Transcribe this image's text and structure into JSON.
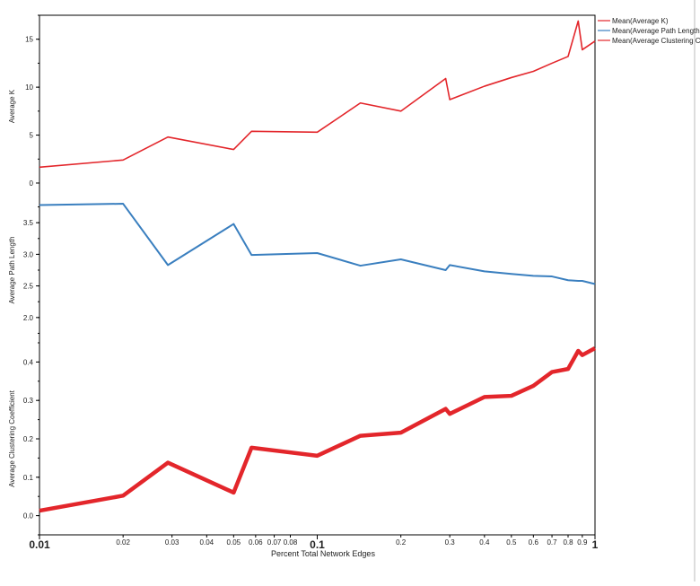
{
  "chart_data": {
    "type": "line",
    "xlabel": "Percent Total Network Edges",
    "xscale": "log",
    "xlim": [
      0.01,
      1
    ],
    "x_ticks": [
      {
        "v": 0.01,
        "label": "0.01",
        "major": true
      },
      {
        "v": 0.02,
        "label": "0.02"
      },
      {
        "v": 0.03,
        "label": "0.03"
      },
      {
        "v": 0.04,
        "label": "0.04"
      },
      {
        "v": 0.05,
        "label": "0.05"
      },
      {
        "v": 0.06,
        "label": "0.06"
      },
      {
        "v": 0.07,
        "label": "0.07"
      },
      {
        "v": 0.08,
        "label": "0.08"
      },
      {
        "v": 0.1,
        "label": "0.1",
        "major": true
      },
      {
        "v": 0.2,
        "label": "0.2"
      },
      {
        "v": 0.3,
        "label": "0.3"
      },
      {
        "v": 0.4,
        "label": "0.4"
      },
      {
        "v": 0.5,
        "label": "0.5"
      },
      {
        "v": 0.6,
        "label": "0.6"
      },
      {
        "v": 0.7,
        "label": "0.7"
      },
      {
        "v": 0.8,
        "label": "0.8"
      },
      {
        "v": 0.9,
        "label": "0.9"
      },
      {
        "v": 1,
        "label": "1",
        "major": true
      }
    ],
    "x": [
      0.01,
      0.02,
      0.029,
      0.05,
      0.058,
      0.1,
      0.143,
      0.2,
      0.29,
      0.3,
      0.4,
      0.5,
      0.6,
      0.7,
      0.8,
      0.87,
      0.9,
      1.0
    ],
    "panels": [
      {
        "ylabel": "Average K",
        "ylim": [
          -1.5,
          17.5
        ],
        "yticks": [
          0,
          5,
          10,
          15
        ],
        "ytick_labels": [
          "0",
          "5",
          "10",
          "15"
        ],
        "series": {
          "name": "Mean(Average K)",
          "color": "#e3262b",
          "width": 1.6,
          "values": [
            1.65,
            2.4,
            4.8,
            3.5,
            5.4,
            5.3,
            8.35,
            7.5,
            10.9,
            8.7,
            10.1,
            11.0,
            11.65,
            12.5,
            13.2,
            16.9,
            13.9,
            14.8
          ]
        }
      },
      {
        "ylabel": "Average Path Length",
        "ylim": [
          1.6,
          3.9
        ],
        "yticks": [
          2.0,
          2.5,
          3.0,
          3.5
        ],
        "ytick_labels": [
          "2.0",
          "2.5",
          "3.0",
          "3.5"
        ],
        "series": {
          "name": "Mean(Average Path Length)",
          "color": "#3a7fbf",
          "width": 2,
          "values": [
            3.78,
            3.8,
            2.83,
            3.48,
            2.99,
            3.02,
            2.82,
            2.92,
            2.75,
            2.83,
            2.73,
            2.69,
            2.66,
            2.65,
            2.59,
            2.58,
            2.58,
            2.53
          ]
        }
      },
      {
        "ylabel": "Average Clustering Coefficient",
        "ylim": [
          -0.05,
          0.45
        ],
        "yticks": [
          0,
          0.1,
          0.2,
          0.3,
          0.4
        ],
        "ytick_labels": [
          "0.0",
          "0.1",
          "0.2",
          "0.3",
          "0.4"
        ],
        "series": {
          "name": "Mean(Average Clustering Coefficient)",
          "color": "#e3262b",
          "width": 4.5,
          "values": [
            0.013,
            0.052,
            0.138,
            0.06,
            0.177,
            0.156,
            0.208,
            0.216,
            0.278,
            0.265,
            0.309,
            0.312,
            0.338,
            0.374,
            0.382,
            0.429,
            0.418,
            0.436
          ]
        }
      }
    ],
    "legend": {
      "placement": "top-right",
      "entries": [
        {
          "label": "Mean(Average K)",
          "color": "#e3262b"
        },
        {
          "label": "Mean(Average Path Length)",
          "color": "#3a7fbf"
        },
        {
          "label": "Mean(Average Clustering C",
          "color": "#e3262b"
        }
      ]
    }
  }
}
